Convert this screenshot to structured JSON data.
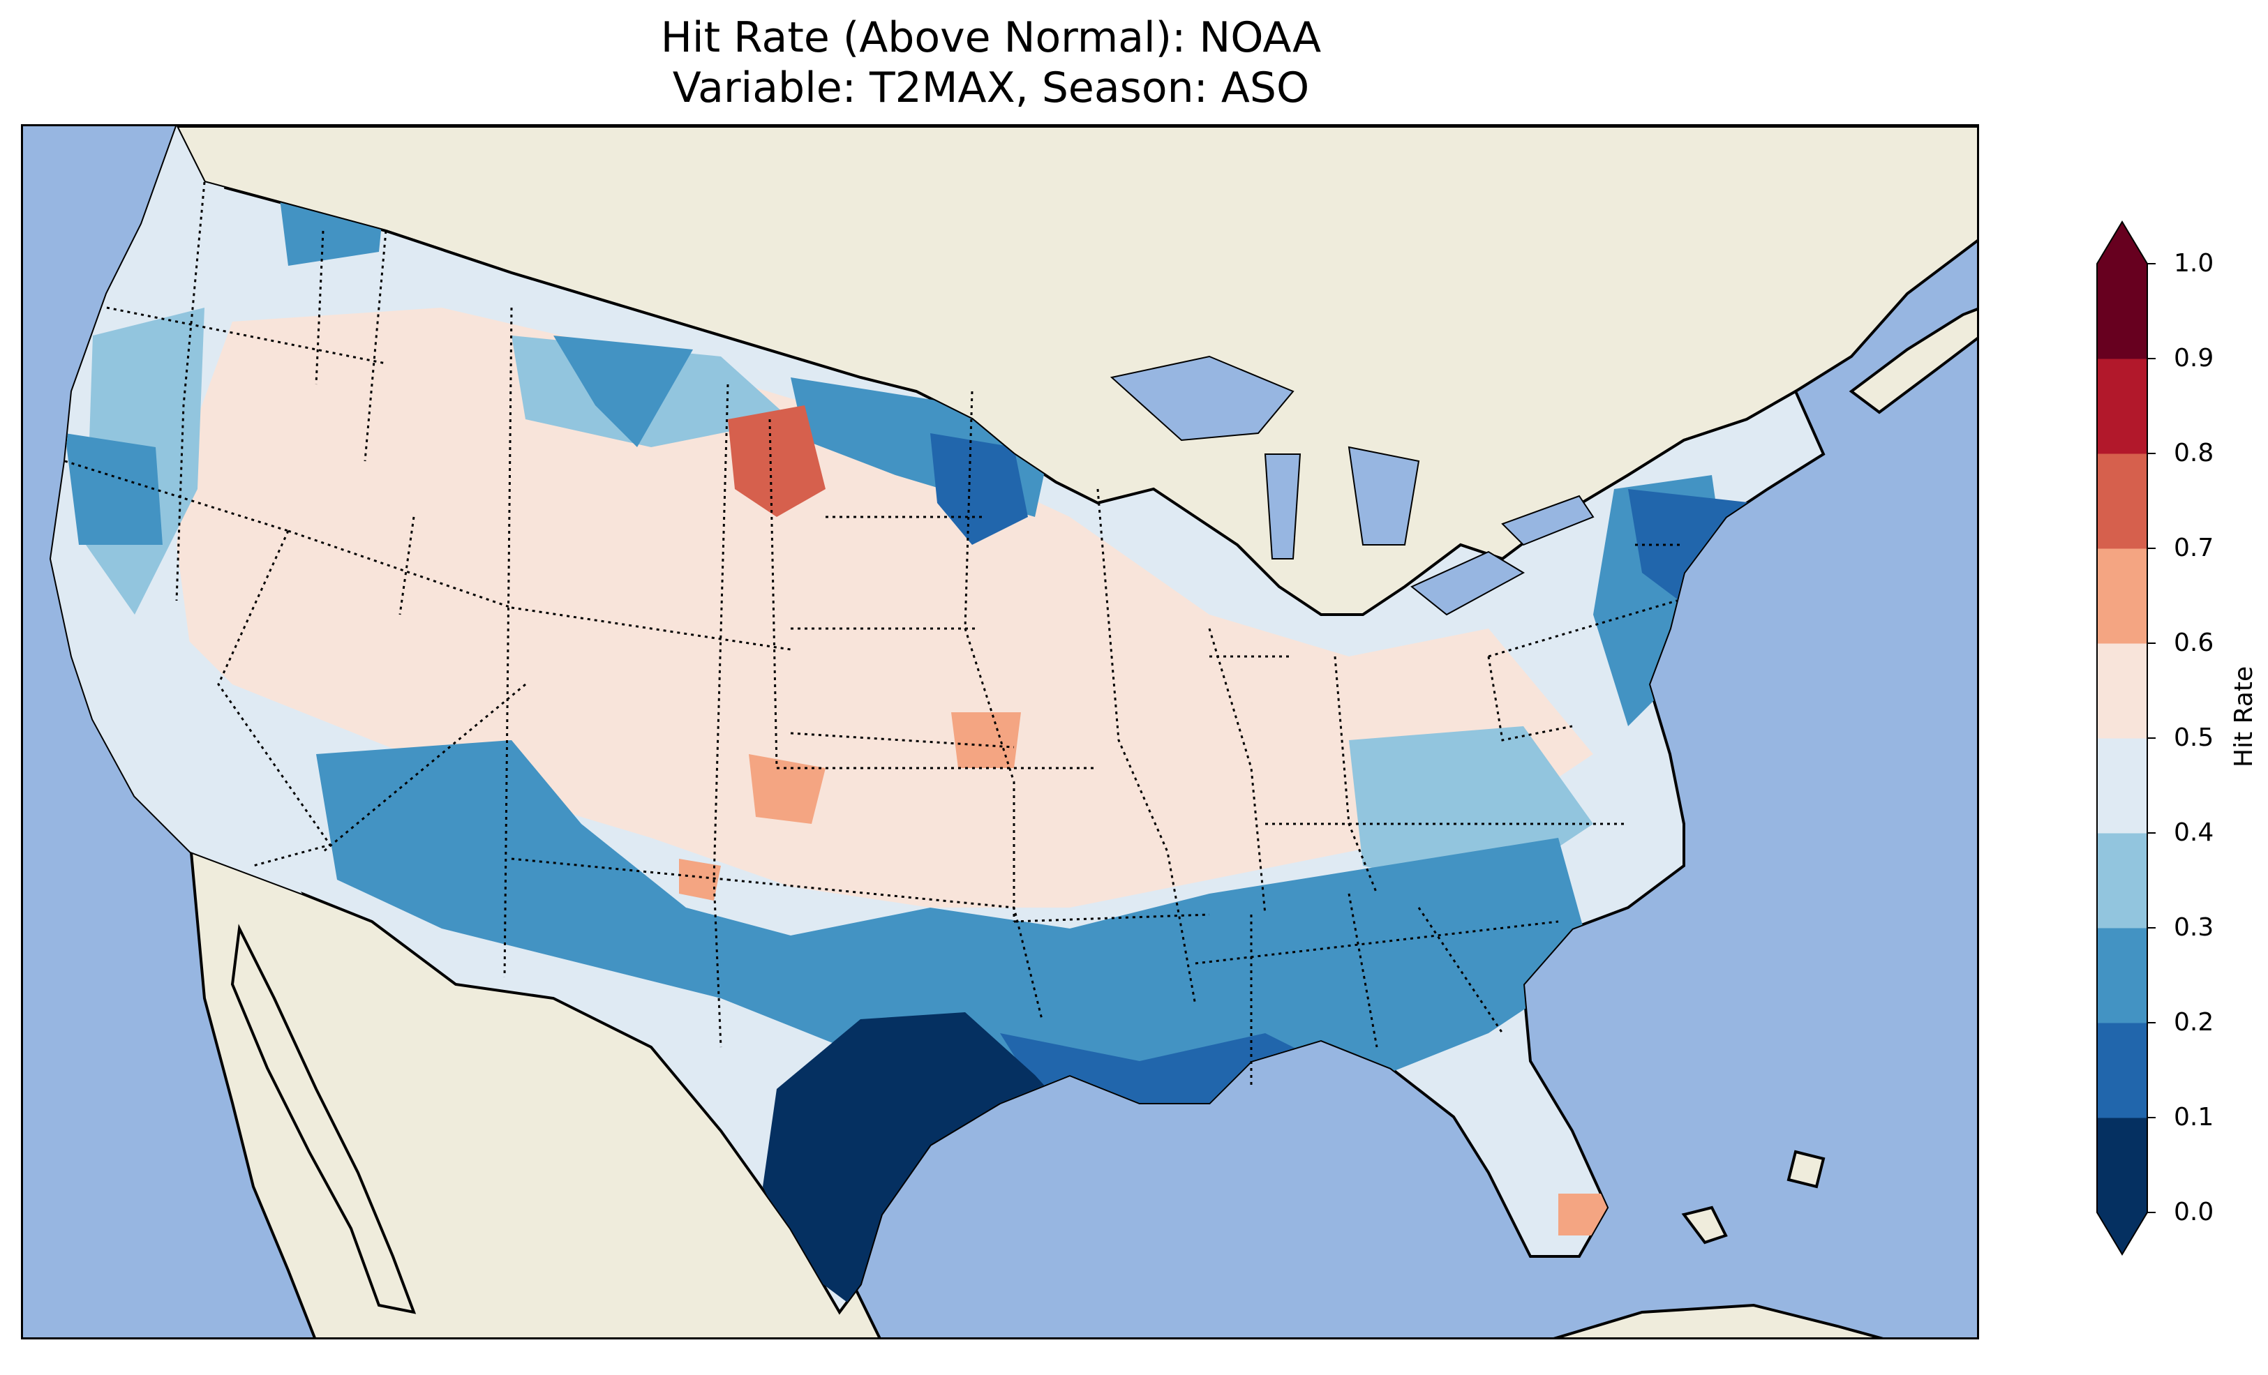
{
  "title": {
    "line1": "Hit Rate (Above Normal): NOAA",
    "line2": "Variable: T2MAX, Season: ASO"
  },
  "map": {
    "region": "contiguous United States",
    "ocean_color": "#97b6e1",
    "land_color": "#efecdc",
    "state_borders": "dotted",
    "coastlines": "solid"
  },
  "colorbar": {
    "label": "Hit Rate",
    "extend": "both",
    "ticks": [
      "0.0",
      "0.1",
      "0.2",
      "0.3",
      "0.4",
      "0.5",
      "0.6",
      "0.7",
      "0.8",
      "0.9",
      "1.0"
    ],
    "bins": [
      {
        "range": [
          0.0,
          0.1
        ],
        "color": "#053061"
      },
      {
        "range": [
          0.1,
          0.2
        ],
        "color": "#2166ac"
      },
      {
        "range": [
          0.2,
          0.3
        ],
        "color": "#4393c3"
      },
      {
        "range": [
          0.3,
          0.4
        ],
        "color": "#92c5de"
      },
      {
        "range": [
          0.4,
          0.5
        ],
        "color": "#dfeaf3"
      },
      {
        "range": [
          0.5,
          0.6
        ],
        "color": "#f8e4da"
      },
      {
        "range": [
          0.6,
          0.7
        ],
        "color": "#f4a582"
      },
      {
        "range": [
          0.7,
          0.8
        ],
        "color": "#d6604d"
      },
      {
        "range": [
          0.8,
          0.9
        ],
        "color": "#b2182b"
      },
      {
        "range": [
          0.9,
          1.0
        ],
        "color": "#67001f"
      }
    ],
    "under_color": "#053061",
    "over_color": "#67001f"
  }
}
